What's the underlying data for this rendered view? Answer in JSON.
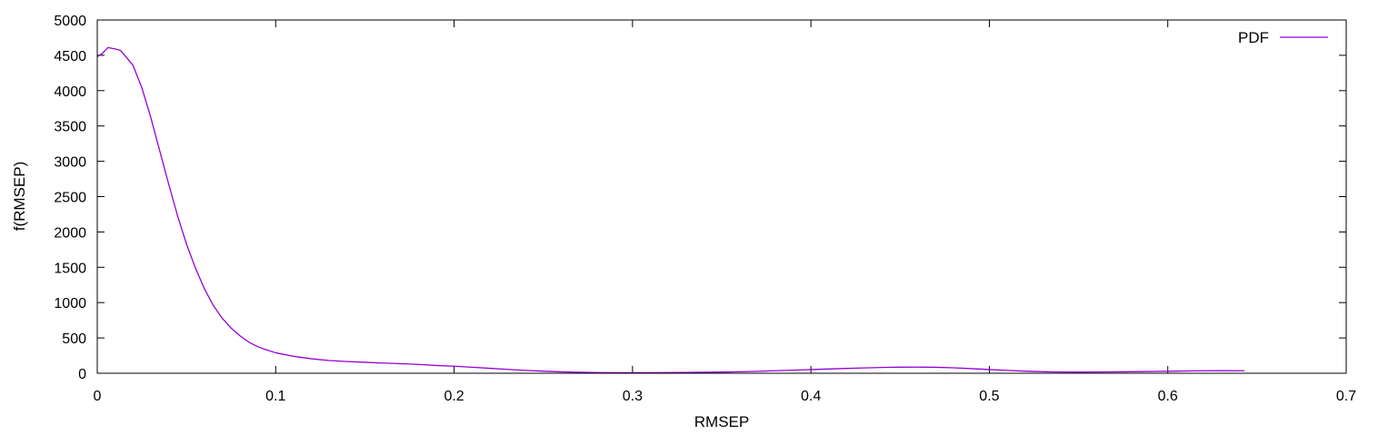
{
  "chart_data": {
    "type": "line",
    "title": "",
    "xlabel": "RMSEP",
    "ylabel": "f(RMSEP)",
    "xlim": [
      0,
      0.7
    ],
    "ylim": [
      0,
      5000
    ],
    "x_ticks": [
      0,
      0.1,
      0.2,
      0.3,
      0.4,
      0.5,
      0.6,
      0.7
    ],
    "y_ticks": [
      0,
      500,
      1000,
      1500,
      2000,
      2500,
      3000,
      3500,
      4000,
      4500,
      5000
    ],
    "x_tick_labels": [
      "0",
      "0.1",
      "0.2",
      "0.3",
      "0.4",
      "0.5",
      "0.6",
      "0.7"
    ],
    "y_tick_labels": [
      "0",
      "500",
      "1000",
      "1500",
      "2000",
      "2500",
      "3000",
      "3500",
      "4000",
      "4500",
      "5000"
    ],
    "grid": false,
    "legend_position": "top-right",
    "series": [
      {
        "name": "PDF",
        "color": "#9400d3",
        "x": [
          0,
          0.003,
          0.006,
          0.01,
          0.013,
          0.016,
          0.02,
          0.025,
          0.03,
          0.035,
          0.04,
          0.045,
          0.05,
          0.055,
          0.06,
          0.065,
          0.07,
          0.075,
          0.08,
          0.085,
          0.09,
          0.095,
          0.1,
          0.11,
          0.12,
          0.13,
          0.14,
          0.15,
          0.16,
          0.17,
          0.18,
          0.19,
          0.2,
          0.21,
          0.22,
          0.23,
          0.24,
          0.25,
          0.26,
          0.27,
          0.28,
          0.29,
          0.3,
          0.31,
          0.32,
          0.33,
          0.34,
          0.35,
          0.36,
          0.37,
          0.38,
          0.39,
          0.4,
          0.41,
          0.42,
          0.43,
          0.44,
          0.45,
          0.46,
          0.47,
          0.48,
          0.49,
          0.5,
          0.51,
          0.52,
          0.53,
          0.54,
          0.55,
          0.56,
          0.57,
          0.58,
          0.59,
          0.6,
          0.61,
          0.62,
          0.63,
          0.643
        ],
        "values": [
          4480,
          4530,
          4610,
          4590,
          4570,
          4480,
          4360,
          4040,
          3620,
          3150,
          2680,
          2230,
          1830,
          1490,
          1200,
          960,
          780,
          640,
          530,
          440,
          375,
          330,
          290,
          240,
          205,
          180,
          165,
          155,
          145,
          135,
          125,
          110,
          100,
          85,
          70,
          55,
          40,
          30,
          20,
          14,
          10,
          8,
          8,
          8,
          9,
          11,
          14,
          17,
          21,
          27,
          35,
          43,
          52,
          60,
          68,
          76,
          82,
          86,
          87,
          84,
          77,
          65,
          52,
          40,
          30,
          22,
          18,
          17,
          18,
          20,
          22,
          25,
          28,
          32,
          35,
          36,
          35
        ]
      }
    ]
  }
}
